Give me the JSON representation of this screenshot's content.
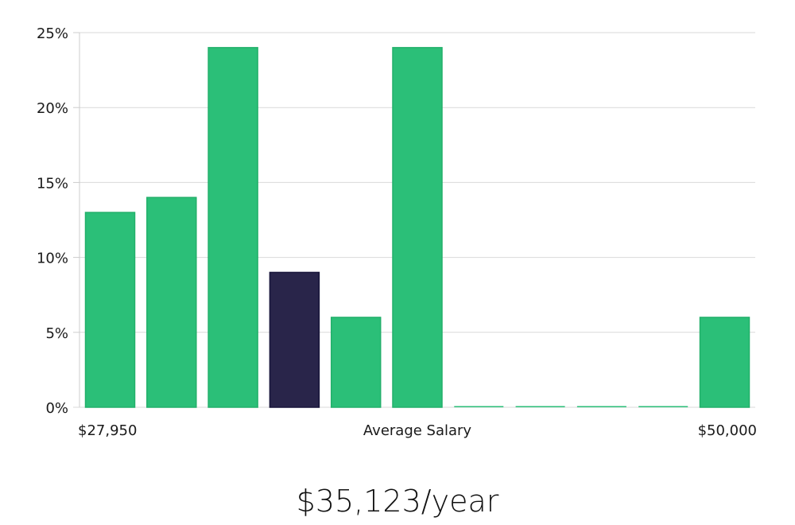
{
  "chart_data": {
    "type": "bar",
    "bin_count": 11,
    "values": [
      13,
      14,
      24,
      9,
      6,
      24,
      0,
      0,
      0,
      0,
      6
    ],
    "highlight_index": 3,
    "ylim": [
      0,
      25
    ],
    "y_ticks": [
      0,
      5,
      10,
      15,
      20,
      25
    ],
    "y_tick_labels": [
      "0%",
      "5%",
      "10%",
      "15%",
      "20%",
      "25%"
    ],
    "x_min_label": "$27,950",
    "x_center_label": "Average Salary",
    "x_max_label": "$50,000",
    "grid": true,
    "colors": {
      "bar": "#2bbf78",
      "bar_edge": "#22b06a",
      "highlight": "#29254a",
      "highlight_edge": "#18153a",
      "grid": "#d9d9d9",
      "axis": "#cccccc"
    }
  },
  "salary": {
    "display": "$35,123/year"
  }
}
